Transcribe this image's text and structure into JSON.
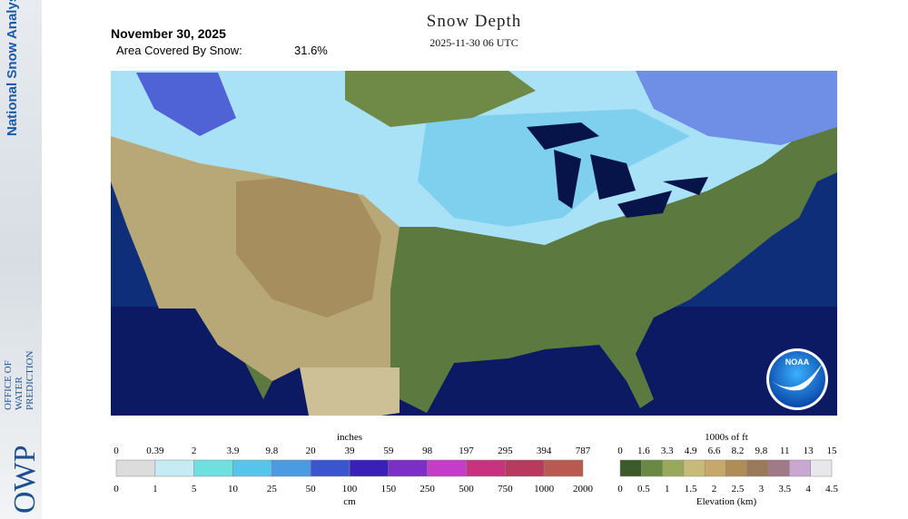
{
  "sidebar": {
    "title": "National Snow Analysis",
    "org_short": "OWP",
    "org_name": [
      "OFFICE OF",
      "WATER",
      "PREDICTION"
    ]
  },
  "header": {
    "date": "November 30, 2025",
    "coverage_label": "Area Covered By Snow:",
    "coverage_value": "31.6%",
    "title": "Snow Depth",
    "timestamp": "2025-11-30 06 UTC"
  },
  "logo": "NOAA",
  "snow_legend": {
    "top_unit": "inches",
    "top_labels": [
      "0",
      "0.39",
      "2",
      "3.9",
      "9.8",
      "20",
      "39",
      "59",
      "98",
      "197",
      "295",
      "394",
      "787"
    ],
    "bottom_labels": [
      "0",
      "1",
      "5",
      "10",
      "25",
      "50",
      "100",
      "150",
      "250",
      "500",
      "750",
      "1000",
      "2000"
    ],
    "bottom_unit": "cm"
  },
  "elevation_legend": {
    "top_unit": "1000s of ft",
    "top_labels": [
      "0",
      "1.6",
      "3.3",
      "4.9",
      "6.6",
      "8.2",
      "9.8",
      "11",
      "13",
      "15"
    ],
    "bottom_labels": [
      "0",
      "0.5",
      "1",
      "1.5",
      "2",
      "2.5",
      "3",
      "3.5",
      "4",
      "4.5"
    ],
    "bottom_unit": "Elevation (km)"
  }
}
